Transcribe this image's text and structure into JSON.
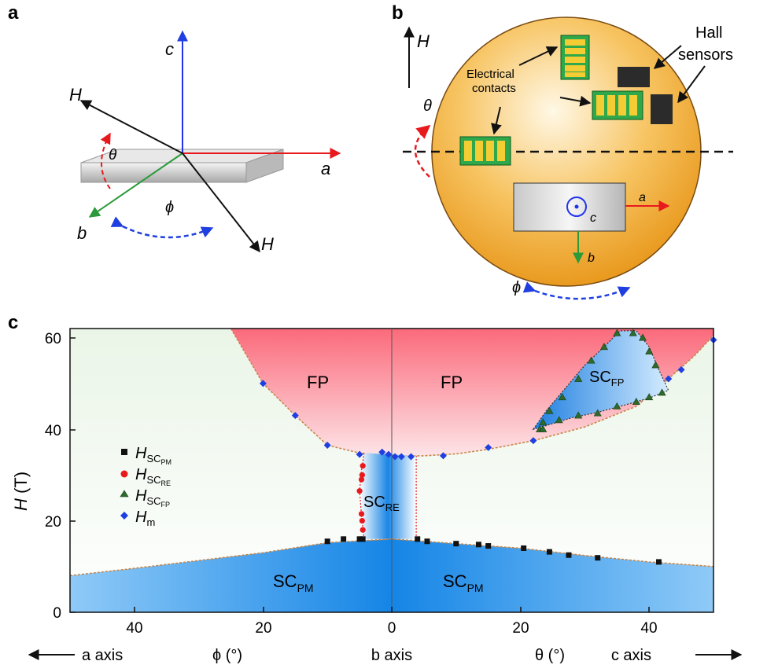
{
  "panel_a": {
    "letter": "a",
    "axis_c": "c",
    "axis_a": "a",
    "axis_b": "b",
    "field_upper": "H",
    "field_lower": "H",
    "angle_theta": "θ",
    "angle_phi": "ϕ"
  },
  "panel_b": {
    "letter": "b",
    "field": "H",
    "angle_theta": "θ",
    "angle_phi": "ϕ",
    "contacts_label_1": "Electrical",
    "contacts_label_2": "contacts",
    "hall_label_1": "Hall",
    "hall_label_2": "sensors",
    "axis_a": "a",
    "axis_b": "b",
    "axis_c": "c"
  },
  "panel_c": {
    "letter": "c",
    "ylabel_italic": "H",
    "ylabel_unit": " (T)",
    "y_ticks": [
      "0",
      "20",
      "40",
      "60"
    ],
    "x_ticks_left": [
      "40",
      "20",
      "0"
    ],
    "x_ticks_right": [
      "20",
      "40"
    ],
    "bottom_a_axis": "a axis",
    "bottom_phi": "ϕ (°)",
    "bottom_b_axis": "b axis",
    "bottom_theta": "θ (°)",
    "bottom_c_axis": "c axis",
    "region_fp_left": "FP",
    "region_fp_right": "FP",
    "region_sc_main": "SC",
    "region_sc_re_sub": "RE",
    "region_sc_fp_sub": "FP",
    "region_sc_pm_sub": "PM",
    "legend": [
      {
        "main": "H",
        "sub": "SC",
        "subsub": "PM",
        "color": "#111111",
        "marker": "square"
      },
      {
        "main": "H",
        "sub": "SC",
        "subsub": "RE",
        "color": "#e8191d",
        "marker": "circle"
      },
      {
        "main": "H",
        "sub": "SC",
        "subsub": "FP",
        "color": "#2d6b2a",
        "marker": "triangle"
      },
      {
        "main": "H",
        "sub": "m",
        "subsub": "",
        "color": "#1f3fe0",
        "marker": "diamond"
      }
    ]
  },
  "chart_data": {
    "type": "scatter",
    "xlabel": "ϕ (°) / θ (°)",
    "ylabel": "H (T)",
    "xlim": [
      -50,
      50
    ],
    "ylim": [
      0,
      62
    ],
    "x_convention": "negative = ϕ (toward a axis), positive = θ (toward c axis), 0 = b axis",
    "colors": {
      "FP": "#f06a7c",
      "SC": "#1f88e5",
      "H_SC_PM": "#111111",
      "H_SC_RE": "#e8191d",
      "H_SC_FP": "#2d6b2a",
      "H_m": "#1f3fe0"
    },
    "series": [
      {
        "name": "H_SC_PM",
        "marker": "square",
        "x": [
          -10,
          -7.5,
          -5,
          -4.5,
          4,
          5.5,
          10,
          13.5,
          15,
          20.5,
          24.5,
          27.5,
          32,
          41.5
        ],
        "y": [
          15.5,
          16,
          16,
          16,
          16,
          15.5,
          15,
          14.8,
          14.5,
          14,
          13.2,
          12.5,
          11.9,
          11
        ]
      },
      {
        "name": "H_SC_RE",
        "marker": "circle",
        "x": [
          -4.5,
          -4.6,
          -4.7,
          -5,
          -4.7,
          -4.6,
          -4.5
        ],
        "y": [
          18,
          20,
          21.5,
          26.5,
          29,
          30,
          32
        ]
      },
      {
        "name": "H_SC_FP",
        "marker": "triangle",
        "x": [
          23,
          23.5,
          24.5,
          26.5,
          29,
          31,
          33,
          35,
          37.5,
          39,
          40,
          41,
          42,
          40,
          38,
          35,
          32,
          29,
          26,
          23.5
        ],
        "y": [
          40,
          41.5,
          44,
          47,
          51,
          55,
          58,
          61,
          61,
          60,
          57,
          54,
          48,
          47,
          46,
          45,
          43.5,
          43,
          42,
          40
        ]
      },
      {
        "name": "H_m",
        "marker": "diamond",
        "x": [
          -20,
          -15,
          -10,
          -5,
          -1.5,
          -0.5,
          0.5,
          1.5,
          3,
          8,
          15,
          22,
          43,
          45,
          50
        ],
        "y": [
          50,
          43,
          36.5,
          34.5,
          35,
          34.5,
          34,
          34,
          34,
          34.2,
          36,
          37.5,
          51,
          53,
          59.5
        ]
      }
    ],
    "regions": [
      "FP",
      "FP",
      "SC_FP",
      "SC_RE",
      "SC_PM",
      "SC_PM"
    ]
  }
}
